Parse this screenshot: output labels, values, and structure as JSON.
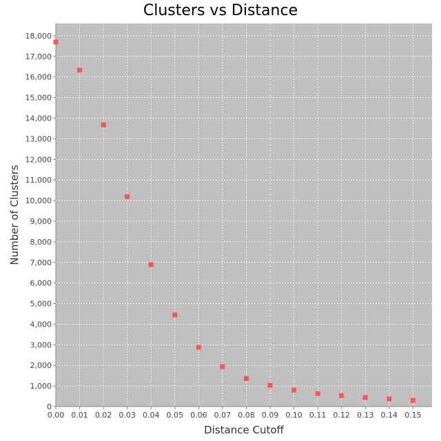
{
  "chart_data": {
    "type": "scatter",
    "title": "Clusters vs Distance",
    "xlabel": "Distance Cutoff",
    "ylabel": "Number of Clusters",
    "xlim": [
      0,
      0.158
    ],
    "ylim": [
      0,
      18600
    ],
    "x_ticks": [
      "0.00",
      "0.01",
      "0.02",
      "0.03",
      "0.04",
      "0.05",
      "0.06",
      "0.07",
      "0.08",
      "0.09",
      "0.10",
      "0.11",
      "0.12",
      "0.13",
      "0.14",
      "0.15"
    ],
    "y_ticks": [
      "0",
      "1,000",
      "2,000",
      "3,000",
      "4,000",
      "5,000",
      "6,000",
      "7,000",
      "8,000",
      "9,000",
      "10,000",
      "11,000",
      "12,000",
      "13,000",
      "14,000",
      "15,000",
      "16,000",
      "17,000",
      "18,000"
    ],
    "grid": true,
    "marker_color": "#ff5555",
    "plot_background": "#c0c0c0",
    "series": [
      {
        "x": [
          0.0,
          0.01,
          0.02,
          0.03,
          0.04,
          0.05,
          0.06,
          0.07,
          0.08,
          0.09,
          0.1,
          0.11,
          0.12,
          0.13,
          0.14,
          0.15
        ],
        "y": [
          17700,
          16330,
          13680,
          10190,
          6890,
          4450,
          2880,
          1940,
          1360,
          1030,
          800,
          630,
          530,
          440,
          370,
          300
        ]
      }
    ]
  }
}
